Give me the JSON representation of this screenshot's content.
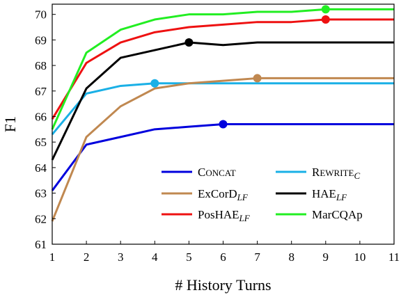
{
  "chart_data": {
    "type": "line",
    "title": "",
    "xlabel": "# History Turns",
    "ylabel": "F1",
    "x": [
      1,
      2,
      3,
      4,
      5,
      6,
      7,
      8,
      9,
      10,
      11
    ],
    "xlim": [
      1,
      11
    ],
    "ylim": [
      61,
      70.4
    ],
    "yticks": [
      61,
      62,
      63,
      64,
      65,
      66,
      67,
      68,
      69,
      70
    ],
    "grid": false,
    "legend_position": "lower-right",
    "series": [
      {
        "name": "CONCAT",
        "name_main": "C",
        "name_small": "ONCAT",
        "name_sub": "",
        "color": "#0000dd",
        "values": [
          63.1,
          64.9,
          65.2,
          65.5,
          65.6,
          65.7,
          65.7,
          65.7,
          65.7,
          65.7,
          65.7
        ],
        "marker_x": 6
      },
      {
        "name": "REWRITE_C",
        "name_main": "R",
        "name_small": "EWRITE",
        "name_sub": "C",
        "color": "#1ab0e6",
        "values": [
          65.3,
          66.9,
          67.2,
          67.3,
          67.3,
          67.3,
          67.3,
          67.3,
          67.3,
          67.3,
          67.3
        ],
        "marker_x": 4
      },
      {
        "name": "ExCorD_LF",
        "name_main": "ExCorD",
        "name_small": "",
        "name_sub": "LF",
        "color": "#c08850",
        "values": [
          61.9,
          65.2,
          66.4,
          67.1,
          67.3,
          67.4,
          67.5,
          67.5,
          67.5,
          67.5,
          67.5
        ],
        "marker_x": 7
      },
      {
        "name": "HAE_LF",
        "name_main": "HAE",
        "name_small": "",
        "name_sub": "LF",
        "color": "#000000",
        "values": [
          64.3,
          67.1,
          68.3,
          68.6,
          68.9,
          68.8,
          68.9,
          68.9,
          68.9,
          68.9,
          68.9
        ],
        "marker_x": 5
      },
      {
        "name": "PosHAE_LF",
        "name_main": "PosHAE",
        "name_small": "",
        "name_sub": "LF",
        "color": "#ee1111",
        "values": [
          65.9,
          68.1,
          68.9,
          69.3,
          69.5,
          69.6,
          69.7,
          69.7,
          69.8,
          69.8,
          69.8
        ],
        "marker_x": 9
      },
      {
        "name": "MarCQAp",
        "name_main": "MarCQAp",
        "name_small": "",
        "name_sub": "",
        "color": "#22ee22",
        "values": [
          65.5,
          68.5,
          69.4,
          69.8,
          70.0,
          70.0,
          70.1,
          70.1,
          70.2,
          70.2,
          70.2
        ],
        "marker_x": 9
      }
    ]
  }
}
